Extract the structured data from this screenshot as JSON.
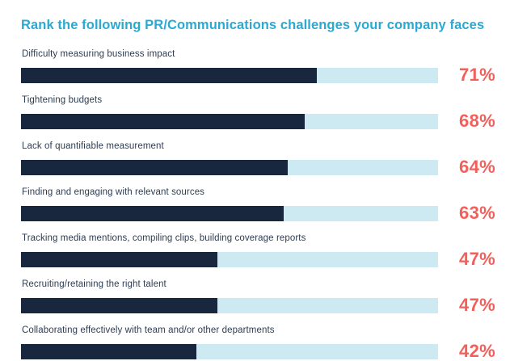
{
  "chart_data": {
    "type": "bar",
    "orientation": "horizontal",
    "title": "Rank the following PR/Communications challenges your company faces",
    "categories": [
      "Difficulty measuring business impact",
      "Tightening budgets",
      "Lack of quantifiable measurement",
      "Finding and engaging with relevant sources",
      "Tracking media mentions, compiling clips, building coverage reports",
      "Recruiting/retaining the right talent",
      "Collaborating effectively with team and/or other departments"
    ],
    "values": [
      71,
      68,
      64,
      63,
      47,
      47,
      42
    ],
    "value_labels": [
      "71%",
      "68%",
      "64%",
      "63%",
      "47%",
      "47%",
      "42%"
    ],
    "xlim": [
      0,
      100
    ],
    "grid": false,
    "legend": "none",
    "colors": {
      "title": "#2aa9d2",
      "category_label": "#2e3d52",
      "bar_fill": "#18263e",
      "bar_track": "#cde9f2",
      "value_label": "#f2605c"
    }
  }
}
